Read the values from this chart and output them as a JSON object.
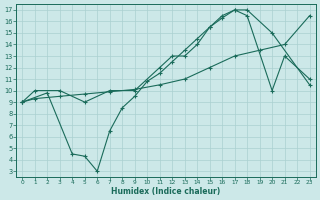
{
  "xlabel": "Humidex (Indice chaleur)",
  "background_color": "#cce8e8",
  "grid_color": "#aad0d0",
  "line_color": "#1a6b5a",
  "xlim": [
    -0.5,
    23.5
  ],
  "ylim": [
    2.5,
    17.5
  ],
  "yticks": [
    3,
    4,
    5,
    6,
    7,
    8,
    9,
    10,
    11,
    12,
    13,
    14,
    15,
    16,
    17
  ],
  "xticks": [
    0,
    1,
    2,
    3,
    4,
    5,
    6,
    7,
    8,
    9,
    10,
    11,
    12,
    13,
    14,
    15,
    16,
    17,
    18,
    19,
    20,
    21,
    22,
    23
  ],
  "line1_x": [
    0,
    1,
    3,
    5,
    7,
    9,
    11,
    12,
    13,
    14,
    15,
    16,
    17,
    18,
    20,
    23
  ],
  "line1_y": [
    9,
    10,
    10,
    9,
    10,
    10,
    12,
    13,
    13,
    14,
    15.5,
    16.5,
    17,
    17,
    15,
    10.5
  ],
  "line2_x": [
    0,
    1,
    3,
    5,
    7,
    9,
    11,
    13,
    15,
    17,
    19,
    21,
    23
  ],
  "line2_y": [
    9,
    9.3,
    9.5,
    9.7,
    9.9,
    10.1,
    10.5,
    11,
    12,
    13,
    13.5,
    14,
    16.5
  ],
  "line3_x": [
    0,
    2,
    4,
    5,
    6,
    7,
    8,
    9,
    10,
    11,
    12,
    13,
    14,
    15,
    16,
    17,
    18,
    20,
    21,
    23
  ],
  "line3_y": [
    9,
    9.8,
    4.5,
    4.3,
    3.0,
    6.5,
    8.5,
    9.5,
    10.8,
    11.5,
    12.5,
    13.5,
    14.5,
    15.5,
    16.3,
    17,
    16.5,
    10,
    13,
    11
  ]
}
